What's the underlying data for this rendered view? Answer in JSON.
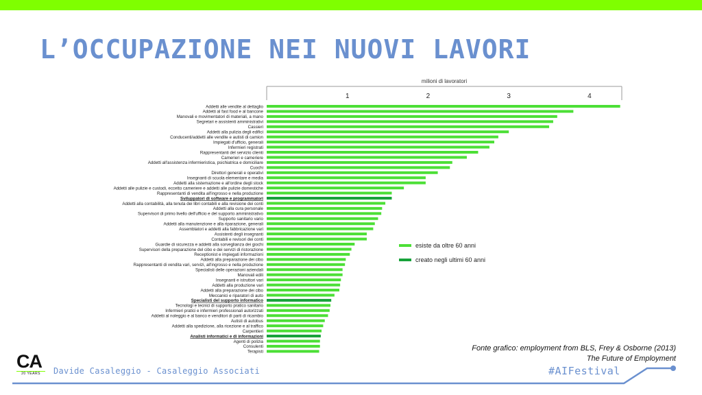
{
  "slide": {
    "title": "L’OCCUPAZIONE NEI NUOVI LAVORI",
    "source_line1": "Fonte grafico: employment from BLS, Frey & Osborne (2013)",
    "source_line2": "The Future of Employment",
    "author": "Davide Casaleggio - Casaleggio Associati",
    "hashtag": "#AIFestival",
    "logo_letters": "CA",
    "logo_sub": "20 YEARS"
  },
  "colors": {
    "top_bar": "#7fff00",
    "title": "#6a90cf",
    "existing": "#4cdf36",
    "created": "#17a23a",
    "footer_line": "#6a90cf"
  },
  "chart_data": {
    "type": "bar",
    "orientation": "horizontal",
    "xlabel": "milioni di lavoratori",
    "xlim": [
      0,
      4.4
    ],
    "xticks": [
      1,
      2,
      3,
      4
    ],
    "legend_position": "right",
    "series": [
      {
        "name": "esiste da oltre 60 anni",
        "color": "#4cdf36"
      },
      {
        "name": "creato negli ultimi 60 anni",
        "color": "#17a23a"
      }
    ],
    "categories": [
      "Addetti alle vendite al dettaglio",
      "Addetti al fast food e al bancone",
      "Manovali e movimentatori di materiali, a mano",
      "Segretari e assistenti amministrativi",
      "Cassieri",
      "Addetti alla pulizia degli edifici",
      "Conducenti/addetti alle vendite e autisti di camion",
      "Impiegati d'ufficio, generali",
      "Infermieri registrati",
      "Rappresentanti del servizio clienti",
      "Camerieri e cameriere",
      "Addetti all'assistenza infermieristica, psichiatrica e domiciliare",
      "Cuochi",
      "Direttori generali e operativi",
      "Insegnanti di scuola elementare e media",
      "Addetti alla sistemazione e all'ordine degli stock",
      "Addetti alle pulizie e custodi, eccetto cameriere e addetti alle pulizie domestiche",
      "Rappresentanti di vendita all'ingrosso e nella produzione",
      "Sviluppatori di software e programmatori",
      "Addetti alla contabilità, alla tenuta dei libri contabili e alla revisione dei conti",
      "Addetti alla cura personale",
      "Supervisori di primo livello dell'ufficio e del supporto amministrativo",
      "Supporto sanitario vario",
      "Addetti alla manutenzione e alla riparazione, generali",
      "Assemblatori e addetti alla fabbricazione vari",
      "Assistenti degli insegnanti",
      "Contabili e revisori dei conti",
      "Guardie di sicurezza e addetti alla sorveglianza dei giochi",
      "Supervisori della preparazione del cibo e dei servizi di ristorazione",
      "Receptionist e impiegati informazioni",
      "Addetti alla preparazione dei cibo",
      "Rappresentanti di vendita vari, servizi, all'ingrosso e nella produzione",
      "Specialisti delle operazioni aziendali",
      "Manovali edili",
      "Insegnanti e istruttori vari",
      "Addetti alla produzione vari",
      "Addetti alla preparazione dei cibo",
      "Meccanici e riparatori di auto",
      "Specialisti del supporto informatico",
      "Tecnologi e tecnici di supporto pratico sanitario",
      "Infermieri pratici e infermieri professionali autorizzati",
      "Addetti al noleggio e al banco e venditori di parti di ricambio",
      "Autisti di autobus",
      "Addetti alla spedizione, alla ricezione e al traffico",
      "Carpentieri",
      "Analisti informatici e di informazioni",
      "Agenti di polizia",
      "Consulenti",
      "Terapisti"
    ],
    "values": [
      4.38,
      3.8,
      3.6,
      3.55,
      3.5,
      3.0,
      2.87,
      2.82,
      2.76,
      2.62,
      2.48,
      2.3,
      2.27,
      2.12,
      1.97,
      1.97,
      1.7,
      1.55,
      1.55,
      1.47,
      1.43,
      1.42,
      1.38,
      1.34,
      1.32,
      1.24,
      1.24,
      1.09,
      1.05,
      1.03,
      0.98,
      0.97,
      0.94,
      0.94,
      0.92,
      0.91,
      0.9,
      0.84,
      0.8,
      0.79,
      0.78,
      0.76,
      0.72,
      0.7,
      0.68,
      0.67,
      0.66,
      0.66,
      0.65
    ],
    "created": [
      false,
      false,
      false,
      false,
      false,
      false,
      false,
      false,
      false,
      false,
      false,
      false,
      false,
      false,
      false,
      false,
      false,
      false,
      true,
      false,
      false,
      false,
      false,
      false,
      false,
      false,
      false,
      false,
      false,
      false,
      false,
      false,
      false,
      false,
      false,
      false,
      false,
      false,
      true,
      false,
      false,
      false,
      false,
      false,
      false,
      true,
      false,
      false,
      false
    ]
  }
}
